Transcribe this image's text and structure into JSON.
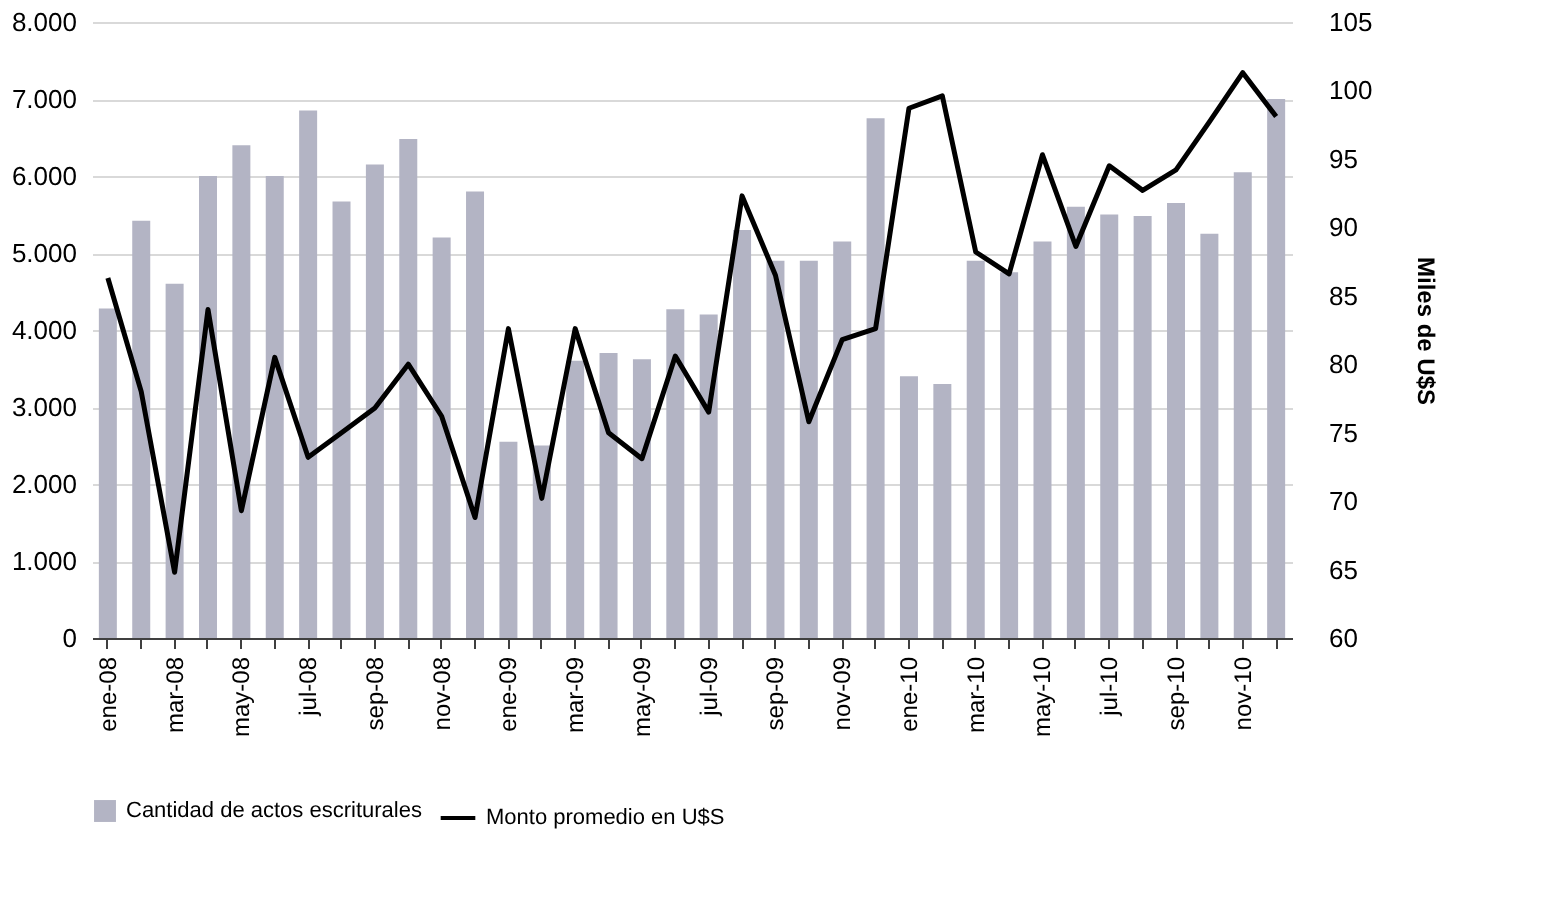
{
  "chart_data": {
    "type": "bar",
    "categories": [
      "ene-08",
      null,
      "mar-08",
      null,
      "may-08",
      null,
      "jul-08",
      null,
      "sep-08",
      null,
      "nov-08",
      null,
      "ene-09",
      null,
      "mar-09",
      null,
      "may-09",
      null,
      "jul-09",
      null,
      "sep-09",
      null,
      "nov-09",
      null,
      "ene-10",
      null,
      "mar-10",
      null,
      "may-10",
      null,
      "jul-10",
      null,
      "sep-10",
      null,
      "nov-10",
      null
    ],
    "series": [
      {
        "name": "Cantidad de actos escriturales",
        "color": "#b3b4c4",
        "values": [
          4280,
          5420,
          4600,
          6000,
          6400,
          6000,
          6850,
          5670,
          6150,
          6480,
          5200,
          5800,
          2550,
          2500,
          3600,
          3700,
          3620,
          4270,
          4200,
          5300,
          4900,
          4900,
          5150,
          6750,
          3400,
          3300,
          4900,
          4750,
          5150,
          5600,
          5500,
          5480,
          5650,
          5250,
          6050,
          7000
        ]
      },
      {
        "name": "Monto promedio en U$S",
        "type": "line",
        "axis": "y2",
        "color": "#000000",
        "values": [
          86.3,
          78,
          64.8,
          84,
          69.3,
          80.5,
          73.2,
          75,
          76.8,
          80,
          76.2,
          68.8,
          82.6,
          70.2,
          82.6,
          75,
          73.1,
          80.6,
          76.5,
          92.3,
          86.5,
          75.8,
          81.8,
          82.6,
          98.7,
          99.6,
          88.2,
          86.6,
          95.3,
          88.6,
          94.5,
          92.7,
          94.2,
          97.7,
          101.3,
          98.1
        ]
      }
    ],
    "y2label": "Miles de U$S",
    "ylim": [
      0,
      8000
    ],
    "yticks": [
      {
        "value": 0,
        "label": "0"
      },
      {
        "value": 1000,
        "label": "1.000"
      },
      {
        "value": 2000,
        "label": "2.000"
      },
      {
        "value": 3000,
        "label": "3.000"
      },
      {
        "value": 4000,
        "label": "4.000"
      },
      {
        "value": 5000,
        "label": "5.000"
      },
      {
        "value": 6000,
        "label": "6.000"
      },
      {
        "value": 7000,
        "label": "7.000"
      },
      {
        "value": 8000,
        "label": "8.000"
      }
    ],
    "y2lim": [
      60,
      105
    ],
    "y2ticks": [
      60,
      65,
      70,
      75,
      80,
      85,
      90,
      95,
      100,
      105
    ],
    "grid": "y",
    "legend": "bottom"
  }
}
